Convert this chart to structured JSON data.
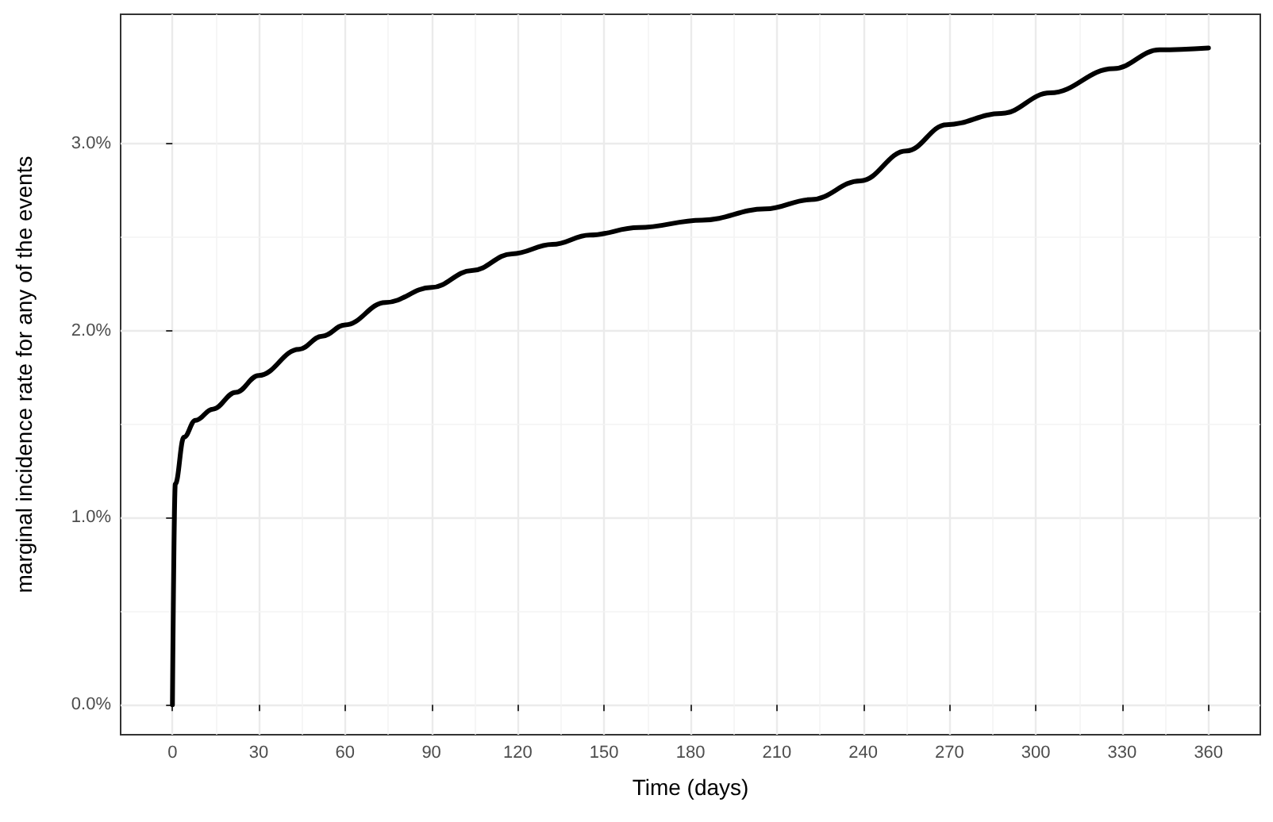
{
  "chart_data": {
    "type": "line",
    "xlabel": "Time (days)",
    "ylabel": "marginal incidence rate for any of the events",
    "x": [
      0,
      1,
      4,
      8,
      14,
      22,
      30,
      44,
      52,
      60,
      74,
      90,
      104,
      118,
      132,
      145,
      162,
      184,
      206,
      222,
      239,
      255,
      269,
      288,
      305,
      327,
      343,
      360
    ],
    "series": [
      {
        "color": "#000000",
        "values": [
          0,
          1.18,
          1.43,
          1.52,
          1.58,
          1.67,
          1.76,
          1.9,
          1.97,
          2.03,
          2.15,
          2.23,
          2.32,
          2.41,
          2.46,
          2.51,
          2.55,
          2.59,
          2.65,
          2.7,
          2.8,
          2.96,
          3.1,
          3.16,
          3.27,
          3.4,
          3.5,
          3.51
        ]
      }
    ],
    "xlim": [
      -18,
      378
    ],
    "ylim": [
      -0.16,
      3.69
    ],
    "xticks": [
      0,
      30,
      60,
      90,
      120,
      150,
      180,
      210,
      240,
      270,
      300,
      330,
      360
    ],
    "yticks": [
      {
        "value": 0,
        "label": "0.0%"
      },
      {
        "value": 1,
        "label": "1.0%"
      },
      {
        "value": 2,
        "label": "2.0%"
      },
      {
        "value": 3,
        "label": "3.0%"
      }
    ],
    "grid": true,
    "marker": "none",
    "line_style": "solid"
  }
}
